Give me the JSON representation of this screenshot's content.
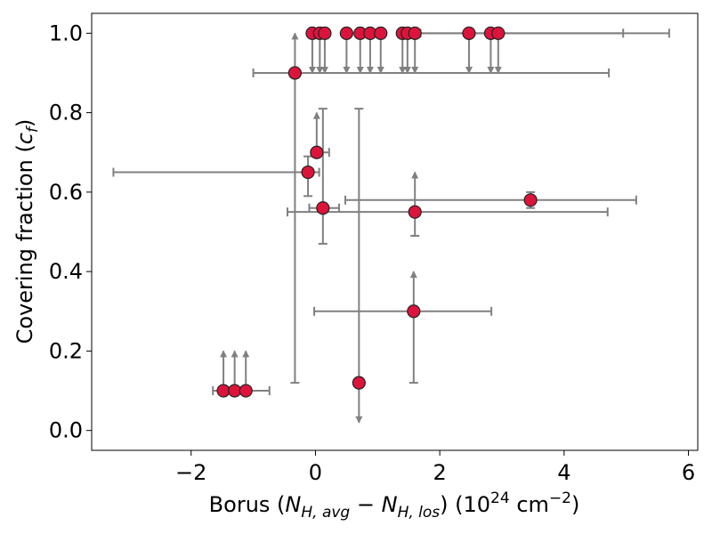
{
  "chart_data": {
    "type": "scatter",
    "xlabel": {
      "prefix": "Borus (",
      "n1": "N",
      "n1sub": "H, avg",
      "minus": " − ",
      "n2": "N",
      "n2sub": "H, los",
      "units_open": ") (10",
      "units_exp": "24",
      "units_mid": " cm",
      "units_exp2": "−2",
      "units_close": ")"
    },
    "ylabel": {
      "prefix": "Covering fraction (",
      "c": "c",
      "csub": "f",
      "suffix": ")"
    },
    "xlim": [
      -3.6,
      6.15
    ],
    "ylim": [
      -0.05,
      1.05
    ],
    "xticks": [
      -2,
      0,
      2,
      4,
      6
    ],
    "xtick_labels": [
      "−2",
      "0",
      "2",
      "4",
      "6"
    ],
    "yticks": [
      0.0,
      0.2,
      0.4,
      0.6,
      0.8,
      1.0
    ],
    "ytick_labels": [
      "0.0",
      "0.2",
      "0.4",
      "0.6",
      "0.8",
      "1.0"
    ],
    "colors": {
      "marker": "#dc143c",
      "errorbar": "#808080"
    },
    "points": [
      {
        "x": -0.05,
        "y": 1.0,
        "xerr": [
          0.0,
          0.0
        ],
        "yerr": [
          0.0,
          0.0
        ],
        "upper_limit": true
      },
      {
        "x": 0.07,
        "y": 1.0,
        "xerr": [
          0.0,
          0.0
        ],
        "yerr": [
          0.0,
          0.0
        ],
        "upper_limit": true
      },
      {
        "x": 0.15,
        "y": 1.0,
        "xerr": [
          0.0,
          0.0
        ],
        "yerr": [
          0.0,
          0.0
        ],
        "upper_limit": true
      },
      {
        "x": 0.5,
        "y": 1.0,
        "xerr": [
          0.0,
          0.0
        ],
        "yerr": [
          0.0,
          0.0
        ],
        "upper_limit": true
      },
      {
        "x": 0.72,
        "y": 1.0,
        "xerr": [
          0.0,
          0.0
        ],
        "yerr": [
          0.0,
          0.0
        ],
        "upper_limit": true
      },
      {
        "x": 0.88,
        "y": 1.0,
        "xerr": [
          0.0,
          0.0
        ],
        "yerr": [
          0.0,
          0.0
        ],
        "upper_limit": true
      },
      {
        "x": 1.05,
        "y": 1.0,
        "xerr": [
          0.0,
          0.0
        ],
        "yerr": [
          0.0,
          0.0
        ],
        "upper_limit": true
      },
      {
        "x": 1.4,
        "y": 1.0,
        "xerr": [
          0.0,
          0.0
        ],
        "yerr": [
          0.0,
          0.0
        ],
        "upper_limit": true
      },
      {
        "x": 1.48,
        "y": 1.0,
        "xerr": [
          0.0,
          0.0
        ],
        "yerr": [
          0.0,
          0.0
        ],
        "upper_limit": true
      },
      {
        "x": 1.6,
        "y": 1.0,
        "xerr": [
          0.0,
          3.35
        ],
        "yerr": [
          0.0,
          0.0
        ],
        "upper_limit": true
      },
      {
        "x": 2.47,
        "y": 1.0,
        "xerr": [
          0.0,
          0.0
        ],
        "yerr": [
          0.0,
          0.0
        ],
        "upper_limit": true
      },
      {
        "x": 2.82,
        "y": 1.0,
        "xerr": [
          0.0,
          0.0
        ],
        "yerr": [
          0.0,
          0.0
        ],
        "upper_limit": true
      },
      {
        "x": 2.94,
        "y": 1.0,
        "xerr": [
          1.25,
          2.75
        ],
        "yerr": [
          0.0,
          0.0
        ],
        "upper_limit": true
      },
      {
        "x": -0.33,
        "y": 0.9,
        "xerr": [
          0.67,
          5.05
        ],
        "yerr": [
          0.78,
          0.0
        ],
        "lower_limit": true
      },
      {
        "x": 0.02,
        "y": 0.7,
        "xerr": [
          0.0,
          0.2
        ],
        "yerr": [
          0.0,
          0.0
        ],
        "lower_limit": true
      },
      {
        "x": -0.12,
        "y": 0.65,
        "xerr": [
          3.13,
          0.18
        ],
        "yerr": [
          0.06,
          0.04
        ]
      },
      {
        "x": 3.46,
        "y": 0.58,
        "xerr": [
          2.98,
          1.7
        ],
        "yerr": [
          0.02,
          0.02
        ]
      },
      {
        "x": 0.12,
        "y": 0.56,
        "xerr": [
          0.22,
          0.26
        ],
        "yerr": [
          0.09,
          0.25
        ]
      },
      {
        "x": 1.6,
        "y": 0.55,
        "xerr": [
          2.05,
          3.1
        ],
        "yerr": [
          0.06,
          0.0
        ],
        "lower_limit": true
      },
      {
        "x": 1.58,
        "y": 0.3,
        "xerr": [
          1.6,
          1.25
        ],
        "yerr": [
          0.18,
          0.0
        ],
        "lower_limit": true
      },
      {
        "x": 0.7,
        "y": 0.12,
        "xerr": [
          0.0,
          0.0
        ],
        "yerr": [
          0.0,
          0.69
        ],
        "upper_limit": true
      },
      {
        "x": -1.48,
        "y": 0.1,
        "xerr": [
          0.17,
          0.0
        ],
        "yerr": [
          0.0,
          0.0
        ],
        "lower_limit": true
      },
      {
        "x": -1.3,
        "y": 0.1,
        "xerr": [
          0.0,
          0.0
        ],
        "yerr": [
          0.0,
          0.0
        ],
        "lower_limit": true
      },
      {
        "x": -1.12,
        "y": 0.1,
        "xerr": [
          0.0,
          0.38
        ],
        "yerr": [
          0.0,
          0.0
        ],
        "lower_limit": true
      }
    ]
  }
}
